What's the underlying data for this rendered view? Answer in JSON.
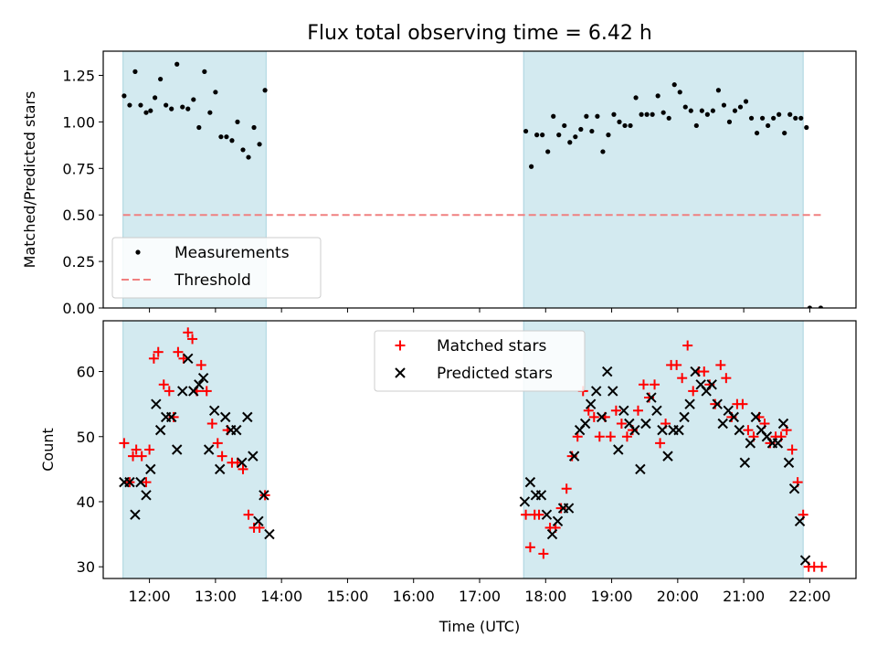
{
  "title": "Flux total observing time = 6.42 h",
  "chart_data": [
    {
      "panel": "top",
      "type": "scatter",
      "ylabel": "Matched/Predicted stars",
      "xlabel": "",
      "xlim": [
        "11:18",
        "22:42"
      ],
      "ylim": [
        0,
        1.38
      ],
      "yticks": [
        0.0,
        0.25,
        0.5,
        0.75,
        1.0,
        1.25
      ],
      "ytick_labels": [
        "0.00",
        "0.25",
        "0.50",
        "0.75",
        "1.00",
        "1.25"
      ],
      "observing_windows": [
        [
          "11:36",
          "13:46"
        ],
        [
          "17:40",
          "21:54"
        ]
      ],
      "window_color": "#d3eaf0",
      "threshold": {
        "name": "Threshold",
        "y": 0.5,
        "x_range": [
          "11:36",
          "22:10"
        ],
        "color": "#f08080",
        "style": "dashed"
      },
      "series": [
        {
          "name": "Measurements",
          "marker": "dot",
          "color": "#000000",
          "points": [
            [
              "11:37",
              1.14
            ],
            [
              "11:42",
              1.09
            ],
            [
              "11:47",
              1.27
            ],
            [
              "11:52",
              1.09
            ],
            [
              "11:57",
              1.05
            ],
            [
              "12:01",
              1.06
            ],
            [
              "12:05",
              1.13
            ],
            [
              "12:10",
              1.23
            ],
            [
              "12:15",
              1.09
            ],
            [
              "12:20",
              1.07
            ],
            [
              "12:25",
              1.31
            ],
            [
              "12:30",
              1.08
            ],
            [
              "12:35",
              1.07
            ],
            [
              "12:40",
              1.12
            ],
            [
              "12:45",
              0.97
            ],
            [
              "12:50",
              1.27
            ],
            [
              "12:55",
              1.05
            ],
            [
              "13:00",
              1.16
            ],
            [
              "13:05",
              0.92
            ],
            [
              "13:10",
              0.92
            ],
            [
              "13:15",
              0.9
            ],
            [
              "13:20",
              1.0
            ],
            [
              "13:25",
              0.85
            ],
            [
              "13:30",
              0.81
            ],
            [
              "13:35",
              0.97
            ],
            [
              "13:40",
              0.88
            ],
            [
              "13:45",
              1.17
            ],
            [
              "17:42",
              0.95
            ],
            [
              "17:47",
              0.76
            ],
            [
              "17:52",
              0.93
            ],
            [
              "17:57",
              0.93
            ],
            [
              "18:02",
              0.84
            ],
            [
              "18:07",
              1.03
            ],
            [
              "18:12",
              0.93
            ],
            [
              "18:17",
              0.98
            ],
            [
              "18:22",
              0.89
            ],
            [
              "18:27",
              0.92
            ],
            [
              "18:32",
              0.96
            ],
            [
              "18:37",
              1.03
            ],
            [
              "18:42",
              0.95
            ],
            [
              "18:47",
              1.03
            ],
            [
              "18:52",
              0.84
            ],
            [
              "18:57",
              0.93
            ],
            [
              "19:02",
              1.04
            ],
            [
              "19:07",
              1.0
            ],
            [
              "19:12",
              0.98
            ],
            [
              "19:17",
              0.98
            ],
            [
              "19:22",
              1.13
            ],
            [
              "19:27",
              1.04
            ],
            [
              "19:32",
              1.04
            ],
            [
              "19:37",
              1.04
            ],
            [
              "19:42",
              1.14
            ],
            [
              "19:47",
              1.05
            ],
            [
              "19:52",
              1.02
            ],
            [
              "19:57",
              1.2
            ],
            [
              "20:02",
              1.16
            ],
            [
              "20:07",
              1.08
            ],
            [
              "20:12",
              1.06
            ],
            [
              "20:17",
              0.98
            ],
            [
              "20:22",
              1.06
            ],
            [
              "20:27",
              1.04
            ],
            [
              "20:32",
              1.06
            ],
            [
              "20:37",
              1.17
            ],
            [
              "20:42",
              1.09
            ],
            [
              "20:47",
              1.0
            ],
            [
              "20:52",
              1.06
            ],
            [
              "20:57",
              1.08
            ],
            [
              "21:02",
              1.11
            ],
            [
              "21:07",
              1.02
            ],
            [
              "21:12",
              0.94
            ],
            [
              "21:17",
              1.02
            ],
            [
              "21:22",
              0.98
            ],
            [
              "21:27",
              1.02
            ],
            [
              "21:32",
              1.04
            ],
            [
              "21:37",
              0.94
            ],
            [
              "21:42",
              1.04
            ],
            [
              "21:47",
              1.02
            ],
            [
              "21:52",
              1.02
            ],
            [
              "21:57",
              0.97
            ],
            [
              "22:00",
              0.0
            ],
            [
              "22:10",
              0.0
            ]
          ]
        }
      ],
      "legend": {
        "placement": "lower-left",
        "entries": [
          "Measurements",
          "Threshold"
        ]
      }
    },
    {
      "panel": "bottom",
      "type": "scatter",
      "ylabel": "Count",
      "xlabel": "Time (UTC)",
      "xlim": [
        "11:18",
        "22:42"
      ],
      "ylim": [
        28.2,
        67.8
      ],
      "yticks": [
        30,
        40,
        50,
        60
      ],
      "ytick_labels": [
        "30",
        "40",
        "50",
        "60"
      ],
      "xticks": [
        "12:00",
        "13:00",
        "14:00",
        "15:00",
        "16:00",
        "17:00",
        "18:00",
        "19:00",
        "20:00",
        "21:00",
        "22:00"
      ],
      "xtick_labels": [
        "12:00",
        "13:00",
        "14:00",
        "15:00",
        "16:00",
        "17:00",
        "18:00",
        "19:00",
        "20:00",
        "21:00",
        "22:00"
      ],
      "observing_windows": [
        [
          "11:36",
          "13:46"
        ],
        [
          "17:40",
          "21:54"
        ]
      ],
      "window_color": "#d3eaf0",
      "series": [
        {
          "name": "Matched stars",
          "marker": "plus",
          "color": "#ff0000",
          "points": [
            [
              "11:37",
              49
            ],
            [
              "11:42",
              43
            ],
            [
              "11:45",
              47
            ],
            [
              "11:48",
              48
            ],
            [
              "11:53",
              47
            ],
            [
              "11:57",
              43
            ],
            [
              "12:00",
              48
            ],
            [
              "12:04",
              62
            ],
            [
              "12:08",
              63
            ],
            [
              "12:13",
              58
            ],
            [
              "12:18",
              57
            ],
            [
              "12:22",
              53
            ],
            [
              "12:26",
              63
            ],
            [
              "12:31",
              62
            ],
            [
              "12:35",
              66
            ],
            [
              "12:39",
              65
            ],
            [
              "12:43",
              57
            ],
            [
              "12:47",
              61
            ],
            [
              "12:52",
              57
            ],
            [
              "12:57",
              52
            ],
            [
              "13:02",
              49
            ],
            [
              "13:06",
              47
            ],
            [
              "13:11",
              51
            ],
            [
              "13:15",
              46
            ],
            [
              "13:20",
              46
            ],
            [
              "13:25",
              45
            ],
            [
              "13:30",
              38
            ],
            [
              "13:35",
              36
            ],
            [
              "13:40",
              36
            ],
            [
              "13:45",
              41
            ],
            [
              "17:42",
              38
            ],
            [
              "17:46",
              33
            ],
            [
              "17:50",
              38
            ],
            [
              "17:54",
              38
            ],
            [
              "17:58",
              32
            ],
            [
              "18:04",
              36
            ],
            [
              "18:09",
              36
            ],
            [
              "18:14",
              39
            ],
            [
              "18:19",
              42
            ],
            [
              "18:24",
              47
            ],
            [
              "18:29",
              50
            ],
            [
              "18:34",
              57
            ],
            [
              "18:39",
              54
            ],
            [
              "18:44",
              53
            ],
            [
              "18:49",
              50
            ],
            [
              "18:54",
              53
            ],
            [
              "18:59",
              50
            ],
            [
              "19:04",
              54
            ],
            [
              "19:09",
              52
            ],
            [
              "19:14",
              50
            ],
            [
              "19:19",
              51
            ],
            [
              "19:24",
              54
            ],
            [
              "19:29",
              58
            ],
            [
              "19:34",
              56
            ],
            [
              "19:39",
              58
            ],
            [
              "19:44",
              49
            ],
            [
              "19:49",
              52
            ],
            [
              "19:54",
              61
            ],
            [
              "19:59",
              61
            ],
            [
              "20:04",
              59
            ],
            [
              "20:09",
              64
            ],
            [
              "20:14",
              57
            ],
            [
              "20:19",
              60
            ],
            [
              "20:24",
              60
            ],
            [
              "20:29",
              58
            ],
            [
              "20:34",
              55
            ],
            [
              "20:39",
              61
            ],
            [
              "20:44",
              59
            ],
            [
              "20:49",
              53
            ],
            [
              "20:54",
              55
            ],
            [
              "20:59",
              55
            ],
            [
              "21:04",
              51
            ],
            [
              "21:09",
              50
            ],
            [
              "21:14",
              53
            ],
            [
              "21:19",
              52
            ],
            [
              "21:24",
              49
            ],
            [
              "21:29",
              50
            ],
            [
              "21:34",
              50
            ],
            [
              "21:39",
              51
            ],
            [
              "21:44",
              48
            ],
            [
              "21:49",
              43
            ],
            [
              "21:54",
              38
            ],
            [
              "21:59",
              30
            ],
            [
              "22:04",
              30
            ],
            [
              "22:11",
              30
            ]
          ]
        },
        {
          "name": "Predicted stars",
          "marker": "x",
          "color": "#000000",
          "points": [
            [
              "11:37",
              43
            ],
            [
              "11:42",
              43
            ],
            [
              "11:47",
              38
            ],
            [
              "11:52",
              43
            ],
            [
              "11:57",
              41
            ],
            [
              "12:01",
              45
            ],
            [
              "12:06",
              55
            ],
            [
              "12:10",
              51
            ],
            [
              "12:15",
              53
            ],
            [
              "12:20",
              53
            ],
            [
              "12:25",
              48
            ],
            [
              "12:30",
              57
            ],
            [
              "12:35",
              62
            ],
            [
              "12:40",
              57
            ],
            [
              "12:45",
              58
            ],
            [
              "12:49",
              59
            ],
            [
              "12:54",
              48
            ],
            [
              "12:59",
              54
            ],
            [
              "13:04",
              45
            ],
            [
              "13:09",
              53
            ],
            [
              "13:14",
              51
            ],
            [
              "13:19",
              51
            ],
            [
              "13:24",
              46
            ],
            [
              "13:29",
              53
            ],
            [
              "13:34",
              47
            ],
            [
              "13:39",
              37
            ],
            [
              "13:44",
              41
            ],
            [
              "13:49",
              35
            ],
            [
              "17:41",
              40
            ],
            [
              "17:46",
              43
            ],
            [
              "17:51",
              41
            ],
            [
              "17:56",
              41
            ],
            [
              "18:01",
              38
            ],
            [
              "18:06",
              35
            ],
            [
              "18:11",
              37
            ],
            [
              "18:16",
              39
            ],
            [
              "18:21",
              39
            ],
            [
              "18:26",
              47
            ],
            [
              "18:31",
              51
            ],
            [
              "18:36",
              52
            ],
            [
              "18:41",
              55
            ],
            [
              "18:46",
              57
            ],
            [
              "18:51",
              53
            ],
            [
              "18:56",
              60
            ],
            [
              "19:01",
              57
            ],
            [
              "19:06",
              48
            ],
            [
              "19:11",
              54
            ],
            [
              "19:16",
              52
            ],
            [
              "19:21",
              51
            ],
            [
              "19:26",
              45
            ],
            [
              "19:31",
              52
            ],
            [
              "19:36",
              56
            ],
            [
              "19:41",
              54
            ],
            [
              "19:46",
              51
            ],
            [
              "19:51",
              47
            ],
            [
              "19:56",
              51
            ],
            [
              "20:01",
              51
            ],
            [
              "20:06",
              53
            ],
            [
              "20:11",
              55
            ],
            [
              "20:16",
              60
            ],
            [
              "20:21",
              58
            ],
            [
              "20:26",
              57
            ],
            [
              "20:31",
              58
            ],
            [
              "20:36",
              55
            ],
            [
              "20:41",
              52
            ],
            [
              "20:46",
              54
            ],
            [
              "20:51",
              53
            ],
            [
              "20:56",
              51
            ],
            [
              "21:01",
              46
            ],
            [
              "21:06",
              49
            ],
            [
              "21:11",
              53
            ],
            [
              "21:16",
              51
            ],
            [
              "21:21",
              50
            ],
            [
              "21:26",
              49
            ],
            [
              "21:31",
              49
            ],
            [
              "21:36",
              52
            ],
            [
              "21:41",
              46
            ],
            [
              "21:46",
              42
            ],
            [
              "21:51",
              37
            ],
            [
              "21:56",
              31
            ]
          ]
        }
      ],
      "legend": {
        "placement": "upper-center",
        "entries": [
          "Matched stars",
          "Predicted stars"
        ]
      }
    }
  ]
}
